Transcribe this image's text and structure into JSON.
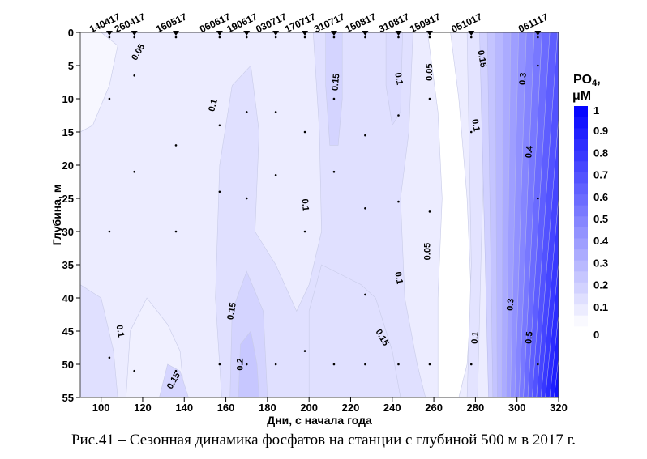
{
  "chart_data": {
    "type": "heatmap",
    "subtype": "filled-contour",
    "xlabel": "Дни, с начала года",
    "ylabel": "Глубина, м",
    "xlim": [
      90,
      320
    ],
    "ylim": [
      0,
      55
    ],
    "y_inverted": true,
    "xticks": [
      100,
      120,
      140,
      160,
      180,
      200,
      220,
      240,
      260,
      280,
      300,
      320
    ],
    "yticks": [
      0,
      5,
      10,
      15,
      20,
      25,
      30,
      35,
      40,
      45,
      50,
      55
    ],
    "colorbar": {
      "title": "PO",
      "title_sub": "4",
      "title_suffix": ",",
      "unit": "μM",
      "levels": [
        0,
        0.1,
        0.2,
        0.3,
        0.4,
        0.5,
        0.6,
        0.7,
        0.8,
        0.9,
        1
      ],
      "tick_labels": [
        "0",
        "0.1",
        "0.2",
        "0.3",
        "0.4",
        "0.5",
        "0.6",
        "0.7",
        "0.8",
        "0.9",
        "1"
      ],
      "color_min": "#ffffff",
      "color_max": "#0000ff"
    },
    "stations": [
      {
        "label": "140417",
        "day": 104,
        "depths": [
          0,
          10,
          30,
          49
        ]
      },
      {
        "label": "260417",
        "day": 116,
        "depths": [
          0,
          6.5,
          21,
          51
        ]
      },
      {
        "label": "160517",
        "day": 136,
        "depths": [
          0,
          17,
          30,
          51
        ]
      },
      {
        "label": "060617",
        "day": 157,
        "depths": [
          0,
          14,
          24,
          50
        ]
      },
      {
        "label": "190617",
        "day": 170,
        "depths": [
          0,
          12,
          25,
          50
        ]
      },
      {
        "label": "030717",
        "day": 184,
        "depths": [
          0,
          12,
          21.5,
          50
        ]
      },
      {
        "label": "170717",
        "day": 198,
        "depths": [
          0,
          15,
          30,
          48
        ]
      },
      {
        "label": "310717",
        "day": 212,
        "depths": [
          0,
          10,
          21,
          50
        ]
      },
      {
        "label": "150817",
        "day": 227,
        "depths": [
          0,
          15.5,
          26.5,
          39.5,
          50
        ]
      },
      {
        "label": "310817",
        "day": 243,
        "depths": [
          0,
          12.5,
          25.5,
          50
        ]
      },
      {
        "label": "150917",
        "day": 258,
        "depths": [
          0,
          10,
          27,
          50
        ]
      },
      {
        "label": "051017",
        "day": 278,
        "depths": [
          0,
          15,
          50
        ]
      },
      {
        "label": "061117",
        "day": 310,
        "depths": [
          0,
          5,
          25,
          50
        ]
      }
    ],
    "contour_labels": [
      {
        "text": "0.05",
        "day": 118,
        "depth": 3,
        "angle": -60
      },
      {
        "text": "0.1",
        "day": 154,
        "depth": 11,
        "angle": -75
      },
      {
        "text": "0.1",
        "day": 198,
        "depth": 26,
        "angle": 85
      },
      {
        "text": "0.15",
        "day": 213,
        "depth": 7.5,
        "angle": -85
      },
      {
        "text": "0.1",
        "day": 243,
        "depth": 7,
        "angle": 80
      },
      {
        "text": "0.05",
        "day": 258,
        "depth": 6,
        "angle": -90
      },
      {
        "text": "0.15",
        "day": 283,
        "depth": 4,
        "angle": 80
      },
      {
        "text": "0.1",
        "day": 280,
        "depth": 14,
        "angle": 80
      },
      {
        "text": "0.3",
        "day": 303,
        "depth": 7,
        "angle": -85
      },
      {
        "text": "0.4",
        "day": 306,
        "depth": 18,
        "angle": -85
      },
      {
        "text": "0.05",
        "day": 257,
        "depth": 33,
        "angle": -90
      },
      {
        "text": "0.1",
        "day": 243,
        "depth": 37,
        "angle": 80
      },
      {
        "text": "0.1",
        "day": 109,
        "depth": 45,
        "angle": 80
      },
      {
        "text": "0.15",
        "day": 163,
        "depth": 42,
        "angle": -80
      },
      {
        "text": "0.15",
        "day": 235,
        "depth": 46,
        "angle": 60
      },
      {
        "text": "0.2",
        "day": 167,
        "depth": 50,
        "angle": -90
      },
      {
        "text": "0.15",
        "day": 135,
        "depth": 52.5,
        "angle": -60
      },
      {
        "text": "0.1",
        "day": 280,
        "depth": 46,
        "angle": -85
      },
      {
        "text": "0.3",
        "day": 297,
        "depth": 41,
        "angle": -85
      },
      {
        "text": "0.5",
        "day": 306,
        "depth": 46,
        "angle": -85
      }
    ]
  },
  "caption": "Рис.41 – Сезонная динамика фосфатов на станции с глубиной 500 м в 2017 г."
}
